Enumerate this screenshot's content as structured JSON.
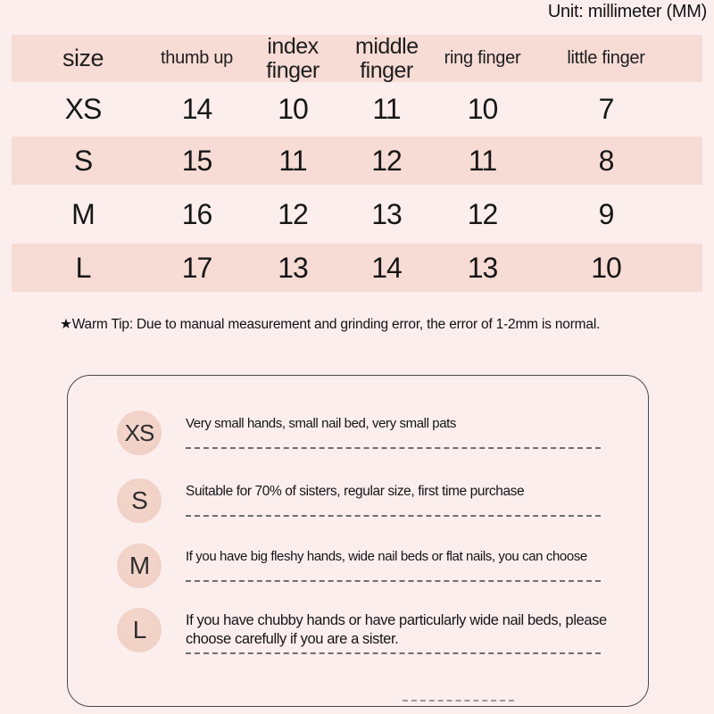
{
  "unit_label": "Unit: millimeter (MM)",
  "chart_data": {
    "type": "table",
    "title": "Nail size chart (Unit: millimeter (MM))",
    "columns": [
      "size",
      "thumb up",
      "index finger",
      "middle finger",
      "ring finger",
      "little finger"
    ],
    "rows": [
      [
        "XS",
        "14",
        "10",
        "11",
        "10",
        "7"
      ],
      [
        "S",
        "15",
        "11",
        "12",
        "11",
        "8"
      ],
      [
        "M",
        "16",
        "12",
        "13",
        "12",
        "9"
      ],
      [
        "L",
        "17",
        "13",
        "14",
        "13",
        "10"
      ]
    ]
  },
  "warm_tip": "★Warm Tip: Due to manual measurement and grinding error, the error of 1-2mm is normal.",
  "size_guide": {
    "items": [
      {
        "size": "XS",
        "description": "Very small hands, small nail bed, very small pats"
      },
      {
        "size": "S",
        "description": "Suitable for 70% of sisters, regular size, first time purchase"
      },
      {
        "size": "M",
        "description": "If you have big fleshy hands, wide nail beds or flat nails, you can choose"
      },
      {
        "size": "L",
        "description": "If you have chubby hands or have particularly wide nail beds, please choose carefully if you are a sister."
      }
    ]
  },
  "colors": {
    "background": "#fdeeee",
    "row_band": "#f7dcd5",
    "circle": "#f2d2c8",
    "text": "#1e1e1e",
    "box_border": "#4a4a4a"
  }
}
